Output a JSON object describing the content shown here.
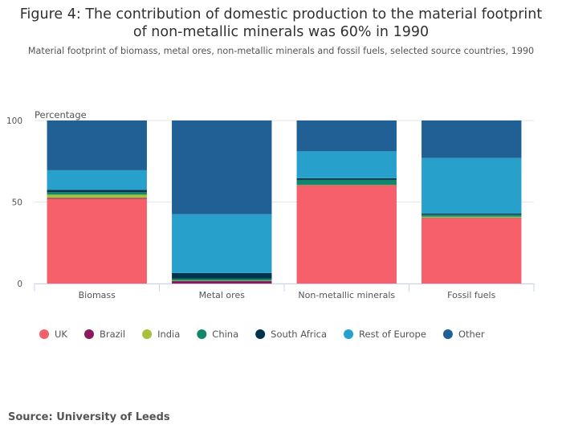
{
  "title_line1": "Figure 4: The contribution of domestic production to the material footprint",
  "title_line2": "of non-metallic minerals was 60% in 1990",
  "subtitle": "Material footprint of biomass, metal ores, non-metallic minerals and fossil fuels, selected source countries, 1990",
  "source": "Source: University of Leeds",
  "chart_data": {
    "type": "bar",
    "stacked": true,
    "ylabel": "Percentage",
    "xlabel": "",
    "ylim": [
      0,
      100
    ],
    "yticks": [
      0,
      50,
      100
    ],
    "grid": true,
    "legend_position": "bottom",
    "categories": [
      "Biomass",
      "Metal ores",
      "Non-metallic minerals",
      "Fossil fuels"
    ],
    "series": [
      {
        "name": "UK",
        "color": "#f5606a",
        "values": [
          52,
          0,
          60,
          40
        ]
      },
      {
        "name": "Brazil",
        "color": "#8c1a5f",
        "values": [
          0.5,
          1.5,
          0.3,
          0.3
        ]
      },
      {
        "name": "India",
        "color": "#a7c13a",
        "values": [
          2,
          0.3,
          0.3,
          0.7
        ]
      },
      {
        "name": "China",
        "color": "#12866b",
        "values": [
          1.5,
          1.2,
          3,
          1.3
        ]
      },
      {
        "name": "South Africa",
        "color": "#00344d",
        "values": [
          1.5,
          3.5,
          1,
          0.7
        ]
      },
      {
        "name": "Rest of Europe",
        "color": "#27a0cc",
        "values": [
          12,
          36,
          16.5,
          34
        ]
      },
      {
        "name": "Other",
        "color": "#206095",
        "values": [
          30.5,
          57.5,
          18.9,
          23
        ]
      }
    ]
  }
}
